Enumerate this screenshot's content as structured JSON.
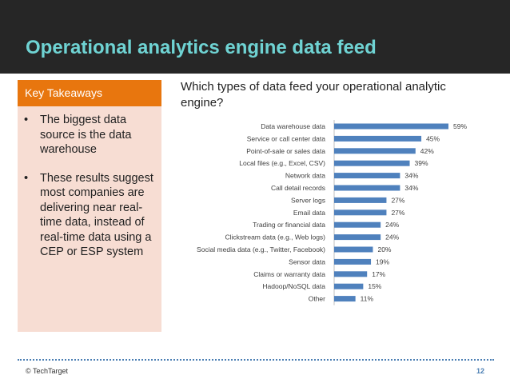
{
  "slide": {
    "title": "Operational analytics engine data feed",
    "footer": "© TechTarget",
    "page_number": "12"
  },
  "takeaways": {
    "heading": "Key Takeaways",
    "bullet_glyph": "•",
    "items": [
      "The biggest data source is the data warehouse",
      "These results suggest most companies are delivering near real-time data, instead of real-time data using a CEP or ESP system"
    ]
  },
  "colors": {
    "accent_title": "#6fd3d3",
    "header_bg": "#262626",
    "takeaway_head": "#e8760e",
    "takeaway_bg": "#f7ddd3",
    "bar": "#4f81bd"
  },
  "chart_data": {
    "type": "bar",
    "orientation": "horizontal",
    "title": "Which types of data feed your operational analytic engine?",
    "xlabel": "",
    "ylabel": "",
    "xlim": [
      0,
      60
    ],
    "value_suffix": "%",
    "grid": false,
    "categories": [
      "Data warehouse data",
      "Service or call center data",
      "Point-of-sale or sales data",
      "Local files (e.g., Excel, CSV)",
      "Network data",
      "Call detail records",
      "Server logs",
      "Email data",
      "Trading or financial data",
      "Clickstream data (e.g., Web logs)",
      "Social media data (e.g., Twitter, Facebook)",
      "Sensor data",
      "Claims or warranty data",
      "Hadoop/NoSQL data",
      "Other"
    ],
    "values": [
      59,
      45,
      42,
      39,
      34,
      34,
      27,
      27,
      24,
      24,
      20,
      19,
      17,
      15,
      11
    ]
  }
}
